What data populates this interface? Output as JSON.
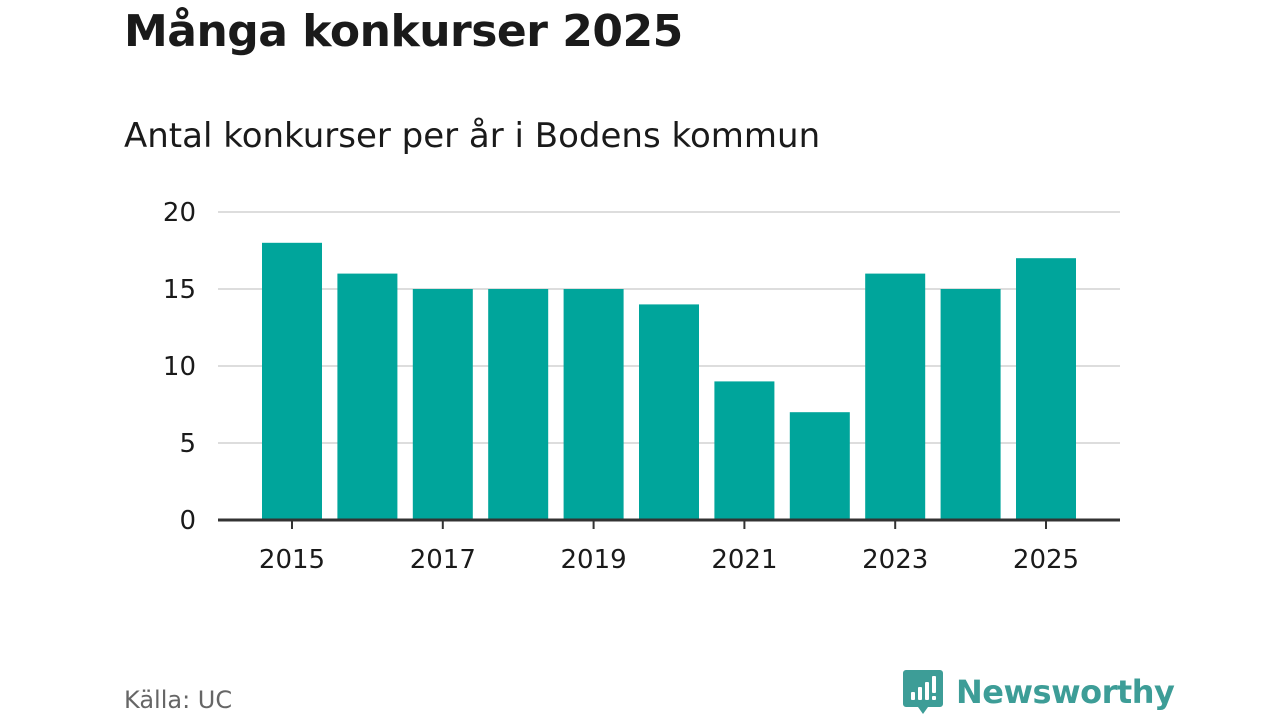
{
  "header": {
    "title": "Många konkurser 2025",
    "subtitle": "Antal konkurser per år i Bodens kommun"
  },
  "footer": {
    "source": "Källa: UC",
    "brand": "Newsworthy"
  },
  "colors": {
    "bar": "#00a59b",
    "grid": "#dddddd",
    "axis": "#333333",
    "text": "#1a1a1a",
    "muted": "#666666",
    "brand": "#3d9d97"
  },
  "chart_data": {
    "type": "bar",
    "title": "Antal konkurser per år i Bodens kommun",
    "xlabel": "",
    "ylabel": "",
    "categories": [
      "2015",
      "2016",
      "2017",
      "2018",
      "2019",
      "2020",
      "2021",
      "2022",
      "2023",
      "2024",
      "2025"
    ],
    "values": [
      18,
      16,
      15,
      15,
      15,
      14,
      9,
      7,
      16,
      15,
      17
    ],
    "x_tick_labels": [
      "2015",
      "2017",
      "2019",
      "2021",
      "2023",
      "2025"
    ],
    "y_ticks": [
      0,
      5,
      10,
      15,
      20
    ],
    "ylim": [
      0,
      20
    ],
    "grid": true
  }
}
